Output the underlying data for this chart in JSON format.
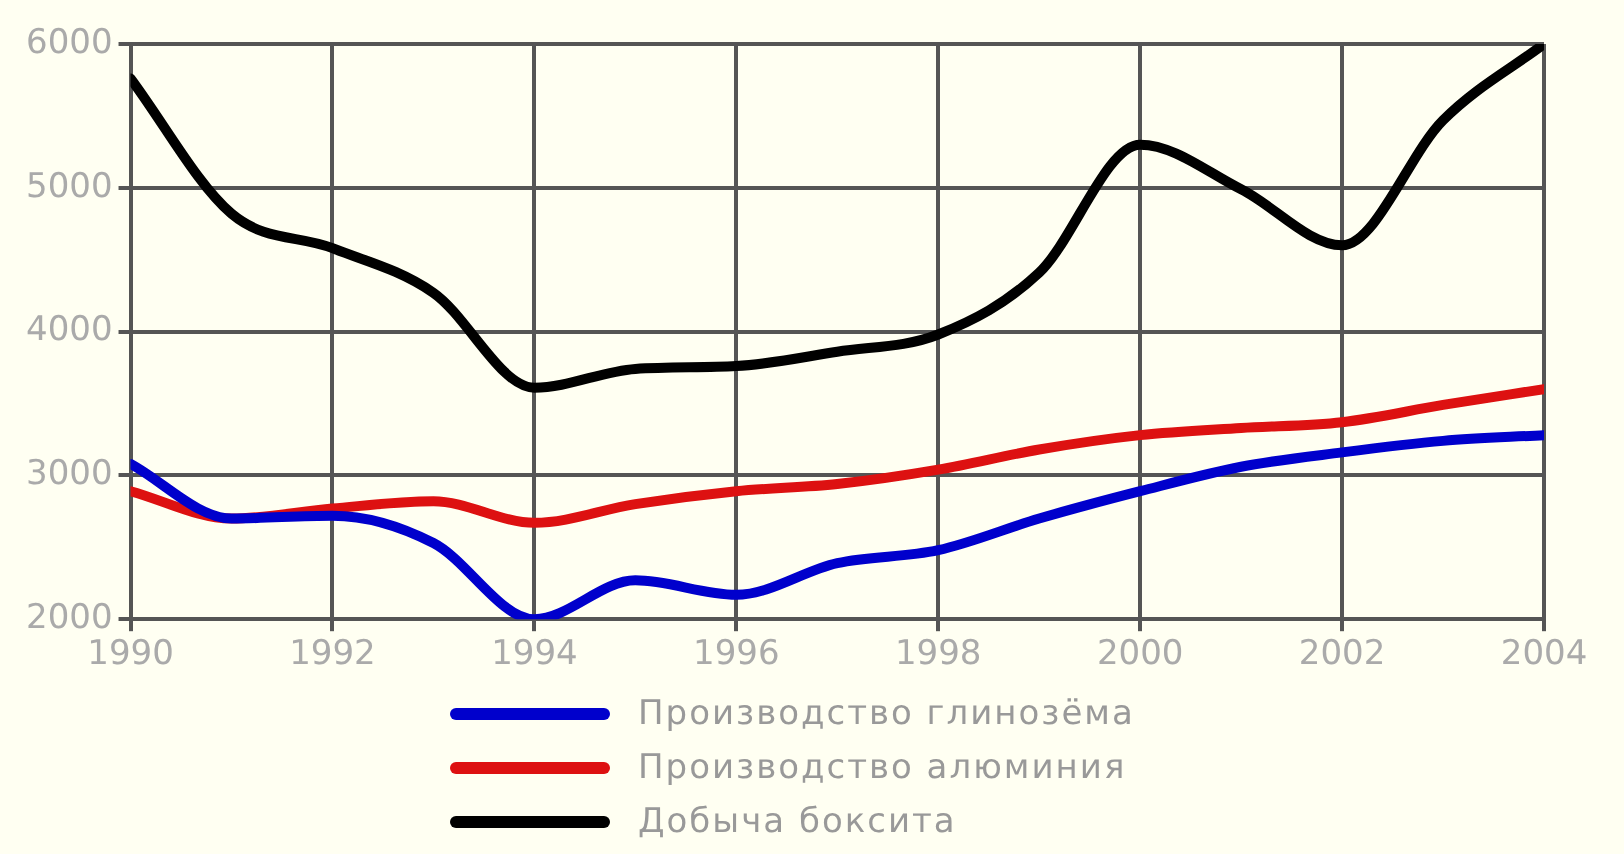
{
  "chart_data": {
    "type": "line",
    "x": [
      1990,
      1991,
      1992,
      1993,
      1994,
      1995,
      1996,
      1997,
      1998,
      1999,
      2000,
      2001,
      2002,
      2003,
      2004
    ],
    "xlim": [
      1990,
      2004
    ],
    "xticks": [
      1990,
      1992,
      1994,
      1996,
      1998,
      2000,
      2002,
      2004
    ],
    "ylim": [
      2000,
      6000
    ],
    "yticks": [
      2000,
      3000,
      4000,
      5000,
      6000
    ],
    "grid": true,
    "legend": "bottom",
    "marker": "none",
    "line_style": "solid",
    "series": [
      {
        "name": "Производство глинозёма",
        "color": "#0000cc",
        "values": [
          3080,
          2700,
          2720,
          2530,
          2000,
          2270,
          2170,
          2390,
          2480,
          2700,
          2890,
          3060,
          3160,
          3240,
          3280
        ]
      },
      {
        "name": "Производство алюминия",
        "color": "#dd1111",
        "values": [
          2890,
          2700,
          2770,
          2820,
          2670,
          2800,
          2890,
          2940,
          3040,
          3180,
          3280,
          3330,
          3370,
          3490,
          3600
        ]
      },
      {
        "name": "Добыча боксита",
        "color": "#000000",
        "values": [
          5760,
          4820,
          4580,
          4270,
          3610,
          3740,
          3760,
          3860,
          3980,
          4410,
          5300,
          4990,
          4600,
          5470,
          6000
        ]
      }
    ]
  }
}
